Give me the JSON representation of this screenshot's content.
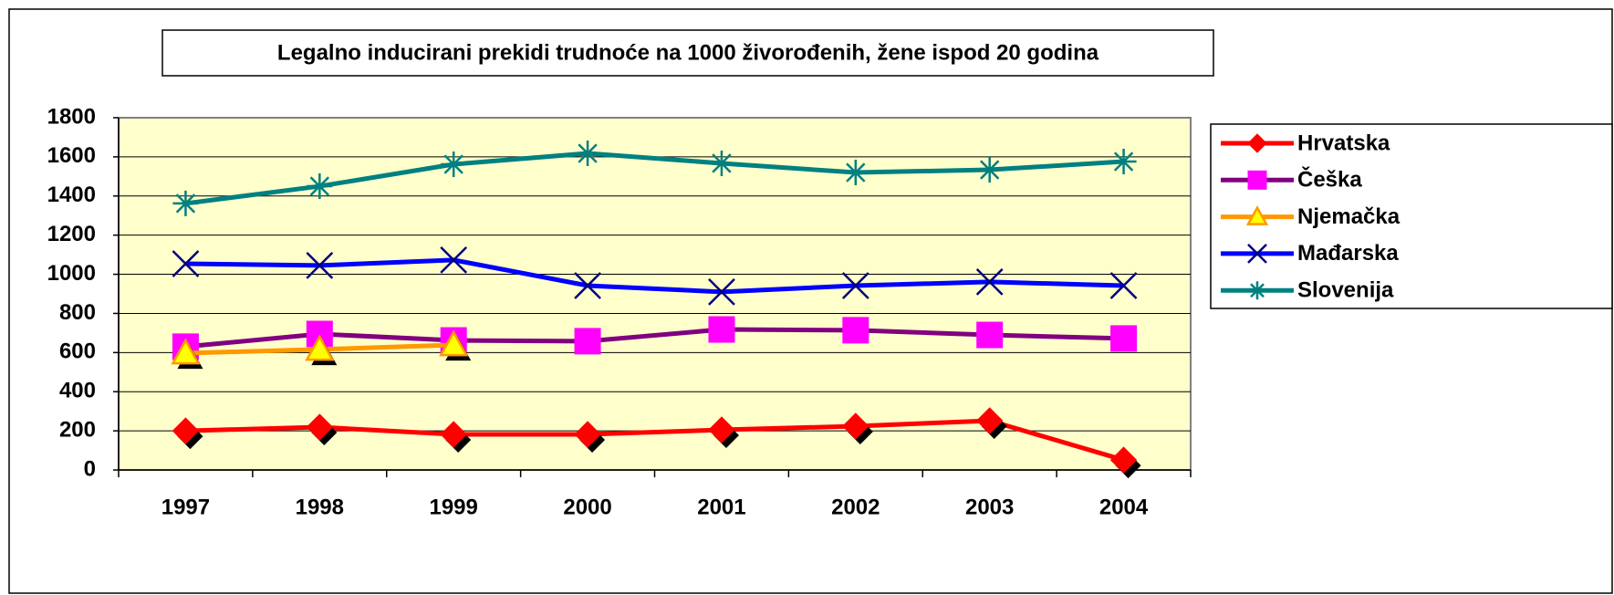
{
  "chart_data": {
    "type": "line",
    "title": "Legalno inducirani prekidi trudnoće na 1000 živorođenih, žene ispod 20 godina",
    "categories": [
      "1997",
      "1998",
      "1999",
      "2000",
      "2001",
      "2002",
      "2003",
      "2004"
    ],
    "series": [
      {
        "name": "Hrvatska",
        "color": "#ff0000",
        "marker": "diamond",
        "values": [
          200,
          219,
          182,
          182,
          205,
          224,
          252,
          51
        ]
      },
      {
        "name": "Češka",
        "color": "#800080",
        "marker": "square",
        "marker_color": "#ff00ff",
        "values": [
          630,
          695,
          662,
          658,
          718,
          714,
          690,
          672
        ]
      },
      {
        "name": "Njemačka",
        "color": "#ff9900",
        "marker": "triangle",
        "marker_color": "#ffff00",
        "values": [
          597,
          616,
          639,
          null,
          null,
          null,
          null,
          null
        ]
      },
      {
        "name": "Mađarska",
        "color": "#0000ff",
        "marker": "x",
        "marker_color": "#000080",
        "values": [
          1054,
          1045,
          1073,
          942,
          910,
          942,
          961,
          942
        ]
      },
      {
        "name": "Slovenija",
        "color": "#008080",
        "marker": "star",
        "values": [
          1362,
          1450,
          1562,
          1618,
          1567,
          1520,
          1534,
          1576
        ]
      }
    ],
    "ylim": [
      0,
      1800
    ],
    "yticks": [
      0,
      200,
      400,
      600,
      800,
      1000,
      1200,
      1400,
      1600,
      1800
    ],
    "grid": true,
    "legend": "right",
    "plot_background": "#ffffcc"
  }
}
